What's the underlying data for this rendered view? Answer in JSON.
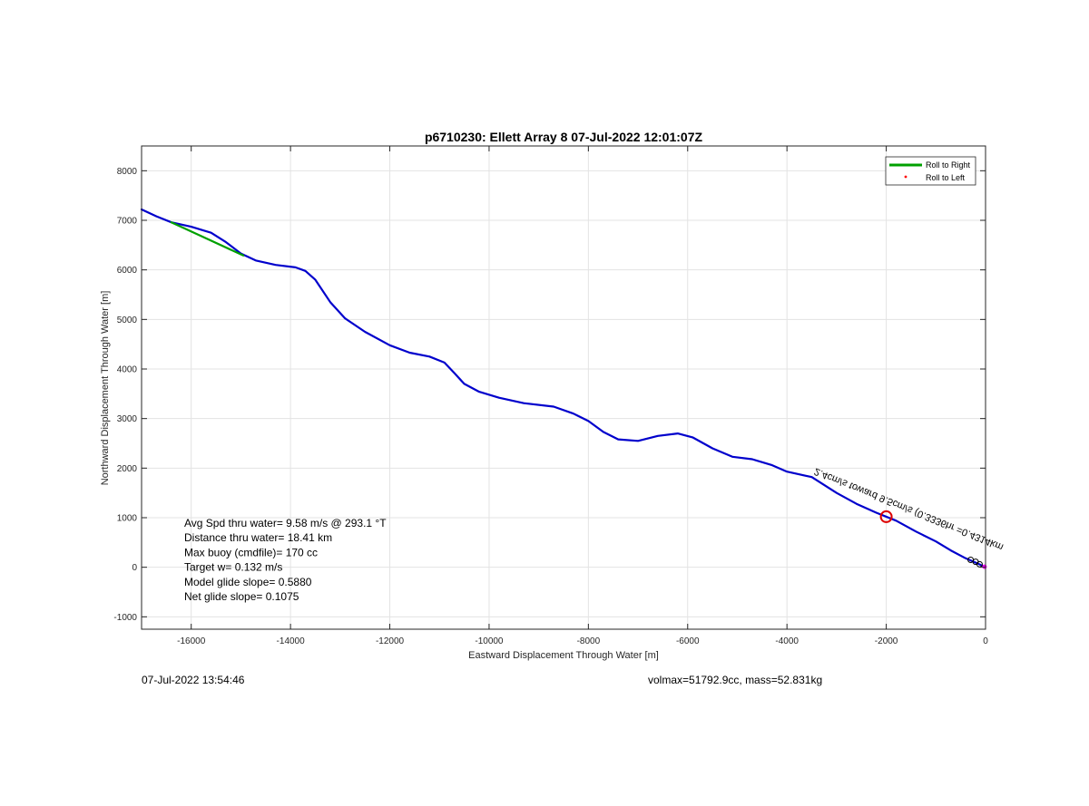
{
  "chart_data": {
    "type": "line",
    "title": "p6710230: Ellett Array 8 07-Jul-2022 12:01:07Z",
    "xlabel": "Eastward Displacement Through Water [m]",
    "ylabel": "Northward Displacement Through Water [m]",
    "xlim": [
      -17000,
      0
    ],
    "ylim": [
      -1250,
      8500
    ],
    "xticks": [
      -16000,
      -14000,
      -12000,
      -10000,
      -8000,
      -6000,
      -4000,
      -2000,
      0
    ],
    "xtick_labels": [
      "-16000",
      "-14000",
      "-12000",
      "-10000",
      "-8000",
      "-6000",
      "-4000",
      "-2000",
      "0"
    ],
    "yticks": [
      -1000,
      0,
      1000,
      2000,
      3000,
      4000,
      5000,
      6000,
      7000,
      8000
    ],
    "ytick_labels": [
      "-1000",
      "0",
      "1000",
      "2000",
      "3000",
      "4000",
      "5000",
      "6000",
      "7000",
      "8000"
    ],
    "grid": true,
    "legend_position": "top-right",
    "legend": [
      {
        "label": "Roll to Right",
        "color": "#00a000",
        "marker": "line"
      },
      {
        "label": "Roll to Left",
        "color": "#ff0000",
        "marker": "dot"
      }
    ],
    "series": [
      {
        "name": "",
        "color": "#0000cc",
        "points": [
          [
            -17000,
            7220
          ],
          [
            -16700,
            7080
          ],
          [
            -16400,
            6960
          ],
          [
            -16000,
            6870
          ],
          [
            -15600,
            6750
          ],
          [
            -15300,
            6560
          ],
          [
            -15000,
            6330
          ],
          [
            -14700,
            6190
          ],
          [
            -14300,
            6100
          ],
          [
            -13900,
            6050
          ],
          [
            -13700,
            5980
          ],
          [
            -13500,
            5800
          ],
          [
            -13200,
            5350
          ],
          [
            -12900,
            5020
          ],
          [
            -12500,
            4750
          ],
          [
            -12000,
            4480
          ],
          [
            -11600,
            4330
          ],
          [
            -11200,
            4250
          ],
          [
            -10900,
            4130
          ],
          [
            -10700,
            3920
          ],
          [
            -10500,
            3700
          ],
          [
            -10200,
            3540
          ],
          [
            -9800,
            3420
          ],
          [
            -9300,
            3310
          ],
          [
            -8700,
            3240
          ],
          [
            -8300,
            3100
          ],
          [
            -8000,
            2950
          ],
          [
            -7700,
            2730
          ],
          [
            -7400,
            2580
          ],
          [
            -7000,
            2550
          ],
          [
            -6600,
            2650
          ],
          [
            -6200,
            2700
          ],
          [
            -5900,
            2620
          ],
          [
            -5500,
            2400
          ],
          [
            -5100,
            2230
          ],
          [
            -4700,
            2180
          ],
          [
            -4300,
            2060
          ],
          [
            -4000,
            1930
          ],
          [
            -3500,
            1820
          ],
          [
            -3000,
            1500
          ],
          [
            -2600,
            1280
          ],
          [
            -2200,
            1100
          ],
          [
            -1800,
            940
          ],
          [
            -1400,
            720
          ],
          [
            -1000,
            520
          ],
          [
            -700,
            340
          ],
          [
            -400,
            180
          ],
          [
            -150,
            70
          ],
          [
            0,
            0
          ]
        ]
      },
      {
        "name": "Roll to Right",
        "color": "#00a000",
        "points": [
          [
            -16400,
            6960
          ],
          [
            -14950,
            6290
          ]
        ]
      }
    ],
    "markers": [
      {
        "x": -2000,
        "y": 1020,
        "shape": "circle",
        "color": "#dd0000"
      }
    ],
    "annotation": {
      "text": "2.4cm/s toward 9.5cm/s (0.3336hr =0.4314km",
      "color": "#000000"
    },
    "stats": [
      "Avg Spd thru water=  9.58 m/s @ 293.1 °T",
      "Distance thru water= 18.41 km",
      "Max buoy (cmdfile)= 170 cc",
      "Target w= 0.132 m/s",
      "Model glide slope= 0.5880",
      "Net glide slope= 0.1075"
    ]
  },
  "footer": {
    "timestamp": "07-Jul-2022 13:54:46",
    "volume_mass": "volmax=51792.9cc, mass=52.831kg"
  }
}
